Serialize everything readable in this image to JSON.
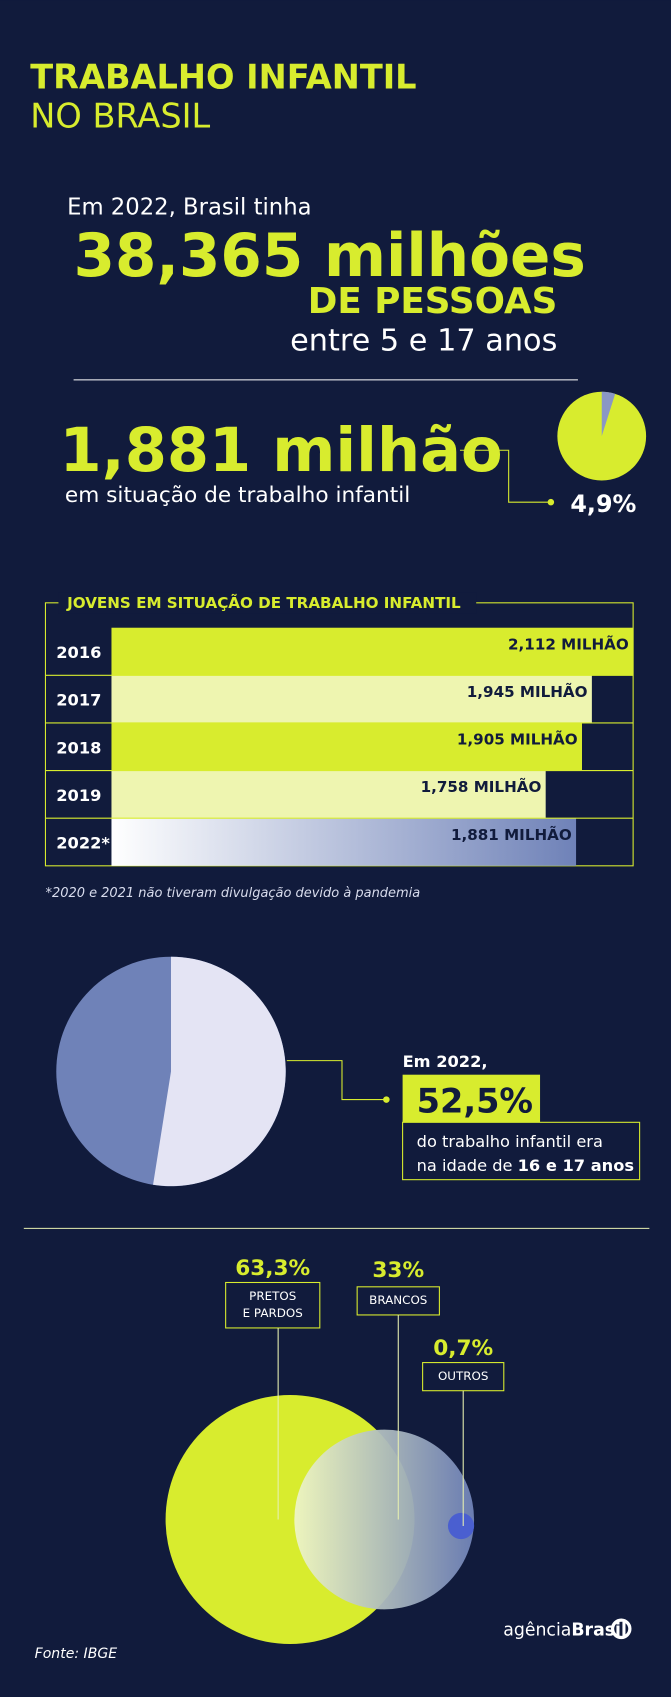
{
  "header": {
    "title": "TRABALHO INFANTIL",
    "subtitle": "NO BRASIL"
  },
  "population": {
    "intro": "Em 2022, Brasil tinha",
    "number": "38,365 milhões",
    "unit": "DE PESSOAS",
    "range": "entre 5 e 17 anos"
  },
  "child_labor": {
    "number": "1,881 milhão",
    "caption": "em situação de trabalho infantil",
    "share": {
      "value": 4.9,
      "label": "4,9%"
    }
  },
  "bar_chart": {
    "title": "JOVENS EM SITUAÇÃO DE TRABALHO INFANTIL",
    "categories": [
      "2016",
      "2017",
      "2018",
      "2019",
      "2022*"
    ],
    "values": [
      2.112,
      1.945,
      1.905,
      1.758,
      1.881
    ],
    "value_labels": [
      "2,112 MILHÃO",
      "1,945 MILHÃO",
      "1,905 MILHÃO",
      "1,758 MILHÃO",
      "1,881 MILHÃO"
    ],
    "footnote": "*2020 e 2021 não tiveram divulgação devido à pandemia"
  },
  "age": {
    "intro": "Em 2022,",
    "share": {
      "value": 52.5,
      "label": "52,5%"
    },
    "caption_line1": "do trabalho infantil era",
    "caption_line2": "na idade de ",
    "caption_bold": "16 e 17 anos"
  },
  "race": {
    "items": [
      {
        "label_lines": [
          "PRETOS",
          "E PARDOS"
        ],
        "value": 63.3,
        "value_label": "63,3%"
      },
      {
        "label_lines": [
          "BRANCOS"
        ],
        "value": 33,
        "value_label": "33%"
      },
      {
        "label_lines": [
          "OUTROS"
        ],
        "value": 0.7,
        "value_label": "0,7%"
      }
    ]
  },
  "footer": {
    "source": "Fonte: IBGE",
    "logo_light": "agência",
    "logo_bold": "Brasil"
  }
}
